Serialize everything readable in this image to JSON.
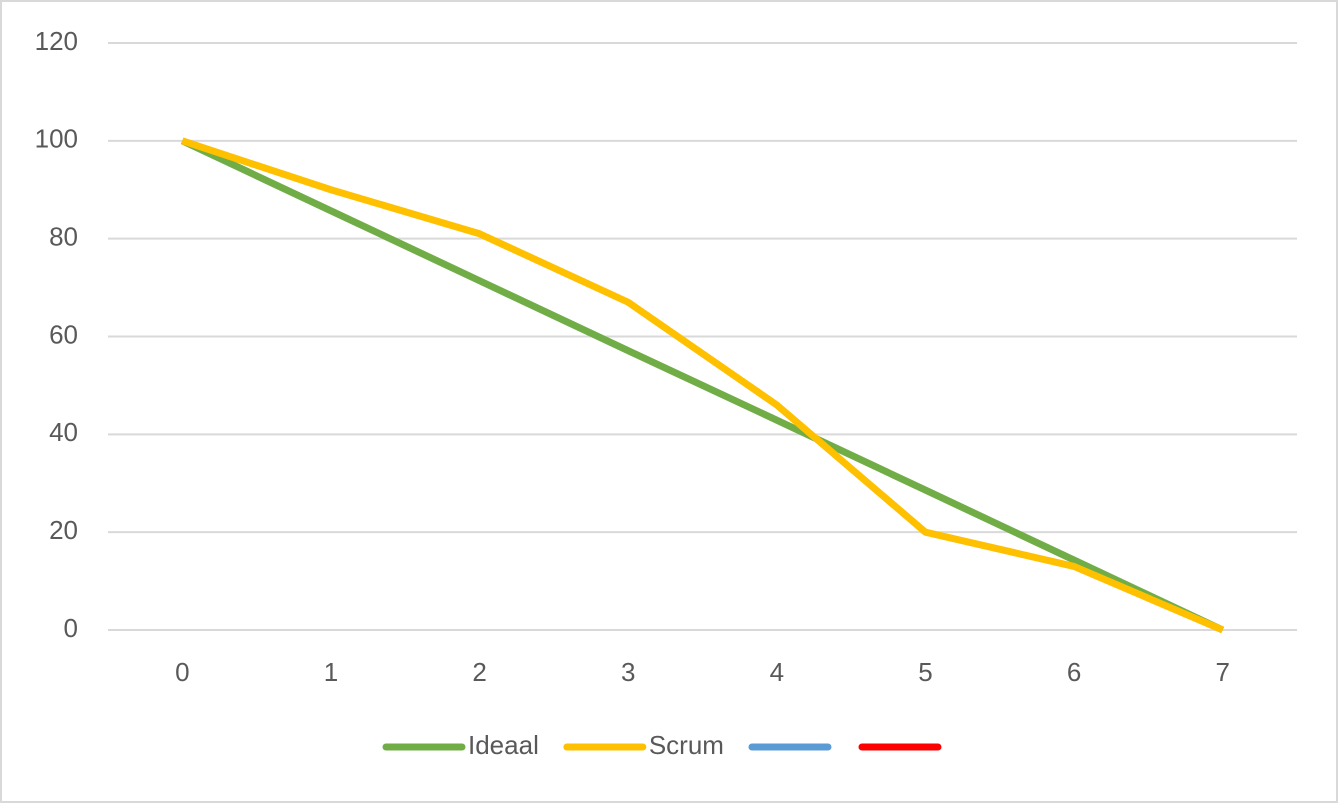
{
  "chart_data": {
    "type": "line",
    "categories": [
      "0",
      "1",
      "2",
      "3",
      "4",
      "5",
      "6",
      "7"
    ],
    "series": [
      {
        "name": "Ideaal",
        "color": "#70ad47",
        "values": [
          100,
          85.7,
          71.4,
          57.1,
          42.9,
          28.6,
          14.3,
          0
        ]
      },
      {
        "name": "Scrum",
        "color": "#ffc000",
        "values": [
          100,
          90,
          81,
          67,
          46,
          20,
          13,
          0
        ]
      },
      {
        "color": "#5b9bd5",
        "values": [
          null,
          null,
          null,
          null,
          null,
          null,
          null,
          null
        ]
      },
      {
        "color": "#ff0000",
        "values": [
          null,
          null,
          null,
          null,
          null,
          null,
          null,
          null
        ]
      }
    ],
    "ylim": [
      0,
      120
    ],
    "yticks": [
      0,
      20,
      40,
      60,
      80,
      100,
      120
    ],
    "grid": true,
    "legend": "bottom"
  }
}
